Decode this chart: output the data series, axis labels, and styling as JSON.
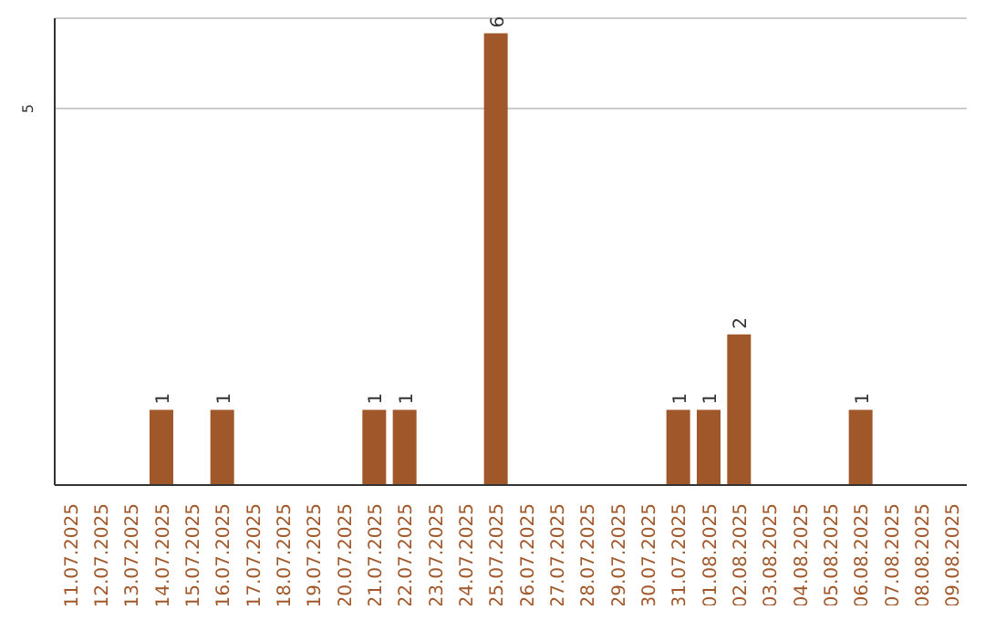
{
  "chart_data": {
    "type": "bar",
    "categories": [
      "11.07.2025",
      "12.07.2025",
      "13.07.2025",
      "14.07.2025",
      "15.07.2025",
      "16.07.2025",
      "17.07.2025",
      "18.07.2025",
      "19.07.2025",
      "20.07.2025",
      "21.07.2025",
      "22.07.2025",
      "23.07.2025",
      "24.07.2025",
      "25.07.2025",
      "26.07.2025",
      "27.07.2025",
      "28.07.2025",
      "29.07.2025",
      "30.07.2025",
      "31.07.2025",
      "01.08.2025",
      "02.08.2025",
      "03.08.2025",
      "04.08.2025",
      "05.08.2025",
      "06.08.2025",
      "07.08.2025",
      "08.08.2025",
      "09.08.2025"
    ],
    "values": [
      0,
      0,
      0,
      1,
      0,
      1,
      0,
      0,
      0,
      0,
      1,
      1,
      0,
      0,
      6,
      0,
      0,
      0,
      0,
      0,
      1,
      1,
      2,
      0,
      0,
      0,
      1,
      0,
      0,
      0
    ],
    "value_labels": [
      null,
      null,
      null,
      "1",
      null,
      "1",
      null,
      null,
      null,
      null,
      "1",
      "1",
      null,
      null,
      "6",
      null,
      null,
      null,
      null,
      null,
      "1",
      "1",
      "2",
      null,
      null,
      null,
      "1",
      null,
      null,
      null
    ],
    "color": "#a0582a",
    "ylim": [
      0,
      6.2
    ],
    "yticks": [
      5
    ],
    "grid": "y"
  }
}
